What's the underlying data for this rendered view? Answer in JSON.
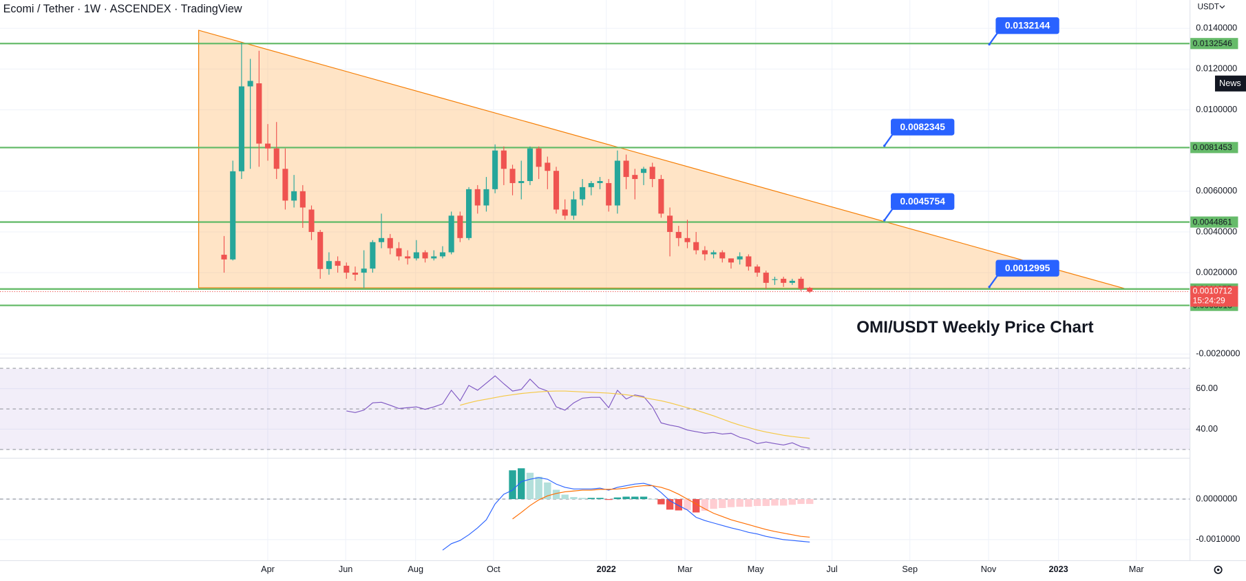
{
  "header": {
    "title": "Ecomi / Tether · 1W · ASCENDEX · TradingView",
    "currency": "USDT",
    "news": "News"
  },
  "x_labels": [
    "Apr",
    "Jun",
    "Aug",
    "Oct",
    "2022",
    "Mar",
    "May",
    "Jul",
    "Sep",
    "Nov",
    "2023",
    "Mar"
  ],
  "chart_data": [
    {
      "type": "candlestick",
      "title": "OMI/USDT Weekly Price Chart",
      "up_color": "#26a69a",
      "down_color": "#ef5350",
      "level_color": "#66bb6a",
      "open": [
        0.00288,
        0.00265,
        0.00698,
        0.01115,
        0.0113,
        0.00834,
        0.0081,
        0.0071,
        0.00554,
        0.006,
        0.0051,
        0.004,
        0.00218,
        0.00257,
        0.00234,
        0.002,
        0.002,
        0.0022,
        0.0035,
        0.0037,
        0.0032,
        0.0028,
        0.0027,
        0.003,
        0.0027,
        0.0028,
        0.003,
        0.0048,
        0.0037,
        0.0061,
        0.0053,
        0.0061,
        0.008,
        0.0071,
        0.0064,
        0.0065,
        0.0081,
        0.0074,
        0.007,
        0.0051,
        0.0048,
        0.0056,
        0.0062,
        0.0064,
        0.0064,
        0.0053,
        0.0075,
        0.0068,
        0.0069,
        0.0072,
        0.0066,
        0.0048,
        0.004,
        0.0037,
        0.0035,
        0.0031,
        0.0029,
        0.003,
        0.0027,
        0.00265,
        0.0028,
        0.0023,
        0.002,
        0.00164,
        0.0017,
        0.0015,
        0.0017,
        0.00125
      ],
      "high": [
        0.0038,
        0.0075,
        0.0133,
        0.0125,
        0.0129,
        0.0093,
        0.0094,
        0.0081,
        0.0068,
        0.0063,
        0.0053,
        0.0041,
        0.003,
        0.0028,
        0.0025,
        0.0023,
        0.0031,
        0.0036,
        0.0049,
        0.0039,
        0.0035,
        0.0031,
        0.0036,
        0.0031,
        0.0031,
        0.0033,
        0.005,
        0.005,
        0.0062,
        0.0063,
        0.0067,
        0.0083,
        0.0082,
        0.0073,
        0.0075,
        0.0082,
        0.0082,
        0.0077,
        0.0072,
        0.0056,
        0.006,
        0.0066,
        0.0065,
        0.0067,
        0.0066,
        0.008,
        0.0078,
        0.0071,
        0.0072,
        0.0074,
        0.0068,
        0.0052,
        0.0043,
        0.0046,
        0.004,
        0.0033,
        0.0031,
        0.0031,
        0.0027,
        0.003,
        0.0029,
        0.0024,
        0.0021,
        0.0018,
        0.0018,
        0.0017,
        0.0018,
        0.0013
      ],
      "low": [
        0.002,
        0.0026,
        0.0066,
        0.0071,
        0.0072,
        0.0075,
        0.0066,
        0.0051,
        0.0052,
        0.0042,
        0.0036,
        0.0017,
        0.0019,
        0.002,
        0.0017,
        0.0016,
        0.00125,
        0.002,
        0.0032,
        0.0029,
        0.0026,
        0.0024,
        0.0026,
        0.0025,
        0.0026,
        0.0027,
        0.0029,
        0.0035,
        0.0036,
        0.0049,
        0.005,
        0.0059,
        0.0063,
        0.0058,
        0.0056,
        0.0063,
        0.0066,
        0.0061,
        0.0049,
        0.0046,
        0.0046,
        0.0053,
        0.0058,
        0.0061,
        0.005,
        0.0049,
        0.0061,
        0.0056,
        0.0063,
        0.0062,
        0.0047,
        0.0028,
        0.0033,
        0.0032,
        0.0029,
        0.0026,
        0.0027,
        0.0025,
        0.0022,
        0.0024,
        0.0021,
        0.0018,
        0.0012,
        0.0014,
        0.0013,
        0.0014,
        0.0011,
        0.001
      ],
      "close": [
        0.00265,
        0.00698,
        0.01115,
        0.01142,
        0.00834,
        0.0081,
        0.0071,
        0.00554,
        0.006,
        0.0052,
        0.004,
        0.00218,
        0.00257,
        0.00234,
        0.002,
        0.0019,
        0.0022,
        0.0035,
        0.0037,
        0.0032,
        0.0028,
        0.0027,
        0.003,
        0.0027,
        0.0028,
        0.003,
        0.0048,
        0.0037,
        0.0061,
        0.0053,
        0.0061,
        0.008,
        0.0071,
        0.0064,
        0.0065,
        0.0081,
        0.0072,
        0.007,
        0.0051,
        0.0048,
        0.0056,
        0.0062,
        0.0064,
        0.0065,
        0.0053,
        0.0075,
        0.0067,
        0.0066,
        0.0071,
        0.0066,
        0.0049,
        0.004,
        0.0037,
        0.0035,
        0.0031,
        0.0029,
        0.003,
        0.0027,
        0.0025,
        0.0028,
        0.0023,
        0.002,
        0.0015,
        0.00168,
        0.0015,
        0.0016,
        0.0012,
        0.00107
      ],
      "ylim": [
        -0.00219,
        0.01539
      ],
      "yticks": [
        {
          "value": 0.014,
          "label": "0.0140000"
        },
        {
          "value": 0.012,
          "label": "0.0120000"
        },
        {
          "value": 0.01,
          "label": "0.0100000"
        },
        {
          "value": 0.006,
          "label": "0.0060000"
        },
        {
          "value": 0.004,
          "label": "0.0040000"
        },
        {
          "value": 0.002,
          "label": "0.0020000"
        },
        {
          "value": -0.002,
          "label": "-0.0020000"
        }
      ],
      "levels": [
        0.0132546,
        0.0081453,
        0.0044861,
        0.0011977,
        0.0003918
      ],
      "callouts": [
        0.0132144,
        0.0082345,
        0.0045754,
        0.0012995
      ],
      "last_price": 0.0010712,
      "countdown": "15:24:29",
      "grid": true
    },
    {
      "type": "line",
      "ylim": [
        26.3,
        74.5
      ],
      "yticks": [
        {
          "value": 60,
          "label": "60.00"
        },
        {
          "value": 40,
          "label": "40.00"
        }
      ],
      "levels": [
        70,
        50,
        30
      ],
      "series": [
        {
          "color": "#7e57c2",
          "values": [
            null,
            null,
            null,
            null,
            null,
            null,
            null,
            null,
            null,
            null,
            null,
            null,
            null,
            null,
            49,
            48.2,
            49.4,
            53,
            53.3,
            51.8,
            50.2,
            50.6,
            51,
            49.8,
            51,
            52.5,
            59.2,
            54,
            61.6,
            59.2,
            62.7,
            66.3,
            62.4,
            58.8,
            59.6,
            64.7,
            60.4,
            58.8,
            51,
            49.4,
            53,
            55.3,
            55.7,
            55.7,
            50.6,
            59.2,
            54.9,
            56.9,
            56.1,
            51,
            43.1,
            42,
            41.2,
            39.6,
            38.8,
            38,
            38.4,
            37.6,
            38,
            36,
            34.9,
            32.9,
            33.7,
            32.9,
            32.2,
            33.3,
            31.4,
            30.6
          ]
        },
        {
          "color": "#f5c842",
          "values": [
            null,
            null,
            null,
            null,
            null,
            null,
            null,
            null,
            null,
            null,
            null,
            null,
            null,
            null,
            null,
            null,
            null,
            null,
            null,
            null,
            null,
            null,
            null,
            null,
            null,
            null,
            null,
            51.8,
            53,
            54,
            54.8,
            55.6,
            56.4,
            57,
            57.6,
            58,
            58.4,
            58.7,
            58.8,
            58.8,
            58.6,
            58.4,
            58.2,
            58,
            57.8,
            57.4,
            57,
            56.4,
            55.6,
            54.8,
            54,
            53,
            51.8,
            50.6,
            49.4,
            48,
            46.6,
            45,
            43.4,
            42,
            40.8,
            39.6,
            38.6,
            37.8,
            37,
            36.4,
            35.9,
            35.5
          ]
        }
      ]
    },
    {
      "type": "macd",
      "ylim": [
        -0.0015,
        0.001
      ],
      "yticks": [
        {
          "value": 0,
          "label": "0.0000000"
        },
        {
          "value": -0.001,
          "label": "-0.0010000"
        }
      ],
      "histogram": [
        null,
        null,
        null,
        null,
        null,
        null,
        null,
        null,
        null,
        null,
        null,
        null,
        null,
        null,
        null,
        null,
        null,
        null,
        null,
        null,
        null,
        null,
        null,
        null,
        null,
        null,
        null,
        null,
        null,
        null,
        null,
        null,
        null,
        0.00071,
        0.00076,
        0.00065,
        0.00055,
        0.00041,
        0.00023,
        0.00011,
        5e-05,
        3e-05,
        3e-05,
        3e-05,
        -2e-05,
        4e-05,
        6e-05,
        6e-05,
        6e-05,
        0,
        -0.00013,
        -0.00026,
        -0.00028,
        -0.00027,
        -0.00033,
        -0.00029,
        -0.00024,
        -0.00022,
        -0.0002,
        -0.00019,
        -0.00019,
        -0.00017,
        -0.00017,
        -0.00016,
        -0.00016,
        -0.00014,
        -0.00012,
        -0.00012
      ],
      "hist_colors": [
        "#26a69a",
        "#b2dfdb",
        "#ffcdd2",
        "#ef5350"
      ],
      "series": [
        {
          "color": "#2962ff",
          "values": [
            null,
            null,
            null,
            null,
            null,
            null,
            null,
            null,
            null,
            null,
            null,
            null,
            null,
            null,
            null,
            null,
            null,
            null,
            null,
            null,
            null,
            null,
            null,
            null,
            null,
            -0.00126,
            -0.0011,
            -0.00102,
            -0.00088,
            -0.00071,
            -0.00051,
            -0.00012,
            0.00012,
            0.00022,
            0.00043,
            0.00049,
            0.00053,
            0.00049,
            0.00037,
            0.00029,
            0.00025,
            0.00025,
            0.00025,
            0.00027,
            0.00022,
            0.00029,
            0.00033,
            0.00037,
            0.00039,
            0.00033,
            0.00016,
            -4e-05,
            -0.00016,
            -0.00027,
            -0.00045,
            -0.00053,
            -0.00059,
            -0.00065,
            -0.00071,
            -0.00076,
            -0.00082,
            -0.00086,
            -0.00092,
            -0.00096,
            -0.001,
            -0.00102,
            -0.00104,
            -0.00106
          ]
        },
        {
          "color": "#ff6d00",
          "values": [
            null,
            null,
            null,
            null,
            null,
            null,
            null,
            null,
            null,
            null,
            null,
            null,
            null,
            null,
            null,
            null,
            null,
            null,
            null,
            null,
            null,
            null,
            null,
            null,
            null,
            null,
            null,
            null,
            null,
            null,
            null,
            null,
            null,
            -0.00049,
            -0.00033,
            -0.00016,
            -2e-05,
            8e-05,
            0.00014,
            0.00018,
            0.0002,
            0.00022,
            0.00022,
            0.00024,
            0.00024,
            0.00025,
            0.00027,
            0.00031,
            0.00033,
            0.00033,
            0.00029,
            0.00022,
            0.00012,
            0,
            -0.00012,
            -0.00024,
            -0.00035,
            -0.00043,
            -0.00051,
            -0.00057,
            -0.00063,
            -0.00069,
            -0.00075,
            -0.0008,
            -0.00084,
            -0.00088,
            -0.00092,
            -0.00094
          ]
        }
      ]
    }
  ]
}
